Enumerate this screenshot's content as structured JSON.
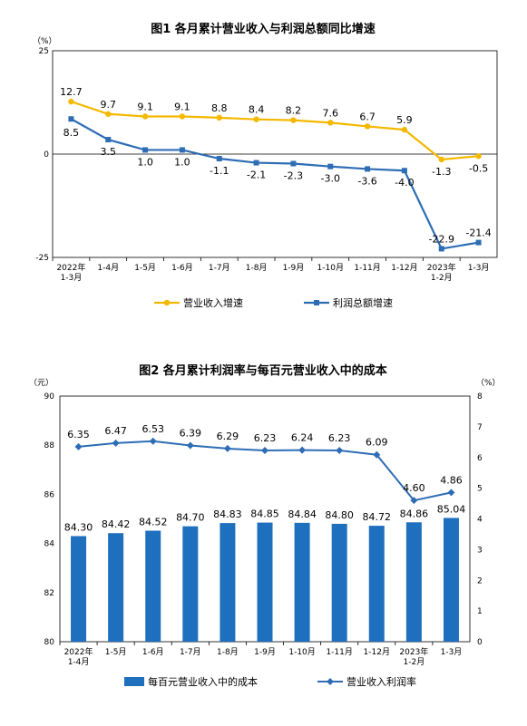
{
  "chart_data": [
    {
      "type": "line",
      "title": "图1  各月累计营业收入与利润总额同比增速",
      "y_unit": "（%）",
      "ylim": [
        -25,
        25
      ],
      "yticks": [
        "25",
        "0",
        "-25"
      ],
      "categories": [
        [
          "2022年",
          "1-3月"
        ],
        [
          "1-4月"
        ],
        [
          "1-5月"
        ],
        [
          "1-6月"
        ],
        [
          "1-7月"
        ],
        [
          "1-8月"
        ],
        [
          "1-9月"
        ],
        [
          "1-10月"
        ],
        [
          "1-11月"
        ],
        [
          "1-12月"
        ],
        [
          "2023年",
          "1-2月"
        ],
        [
          "1-3月"
        ]
      ],
      "series": [
        {
          "name": "营业收入增速",
          "color": "#F5B800",
          "marker": "circle",
          "values": [
            12.7,
            9.7,
            9.1,
            9.1,
            8.8,
            8.4,
            8.2,
            7.6,
            6.7,
            5.9,
            -1.3,
            -0.5
          ],
          "labels": [
            "12.7",
            "9.7",
            "9.1",
            "9.1",
            "8.8",
            "8.4",
            "8.2",
            "7.6",
            "6.7",
            "5.9",
            "-1.3",
            "-0.5"
          ]
        },
        {
          "name": "利润总额增速",
          "color": "#2E6DB4",
          "marker": "square",
          "values": [
            8.5,
            3.5,
            1.0,
            1.0,
            -1.1,
            -2.1,
            -2.3,
            -3.0,
            -3.6,
            -4.0,
            -22.9,
            -21.4
          ],
          "labels": [
            "8.5",
            "3.5",
            "1.0",
            "1.0",
            "-1.1",
            "-2.1",
            "-2.3",
            "-3.0",
            "-3.6",
            "-4.0",
            "-22.9",
            "-21.4"
          ]
        }
      ],
      "legend_position": "bottom",
      "grid": false
    },
    {
      "type": "bar+line",
      "title": "图2  各月累计利润率与每百元营业收入中的成本",
      "y_unit_left": "（元）",
      "y_unit_right": "（%）",
      "ylim_left": [
        80,
        90
      ],
      "yticks_left": [
        "90",
        "88",
        "86",
        "84",
        "82",
        "80"
      ],
      "ylim_right": [
        0,
        8
      ],
      "yticks_right": [
        "8",
        "7",
        "6",
        "5",
        "4",
        "3",
        "2",
        "1",
        "0"
      ],
      "categories": [
        [
          "2022年",
          "1-4月"
        ],
        [
          "1-5月"
        ],
        [
          "1-6月"
        ],
        [
          "1-7月"
        ],
        [
          "1-8月"
        ],
        [
          "1-9月"
        ],
        [
          "1-10月"
        ],
        [
          "1-11月"
        ],
        [
          "1-12月"
        ],
        [
          "2023年",
          "1-2月"
        ],
        [
          "1-3月"
        ]
      ],
      "bars": {
        "name": "每百元营业收入中的成本",
        "color": "#1F6FBF",
        "axis": "left",
        "values": [
          84.3,
          84.42,
          84.52,
          84.7,
          84.83,
          84.85,
          84.84,
          84.8,
          84.72,
          84.86,
          85.04
        ],
        "labels": [
          "84.30",
          "84.42",
          "84.52",
          "84.70",
          "84.83",
          "84.85",
          "84.84",
          "84.80",
          "84.72",
          "84.86",
          "85.04"
        ]
      },
      "line": {
        "name": "营业收入利润率",
        "color": "#2E6DB4",
        "axis": "right",
        "marker": "diamond",
        "values": [
          6.35,
          6.47,
          6.53,
          6.39,
          6.29,
          6.23,
          6.24,
          6.23,
          6.09,
          4.6,
          4.86
        ],
        "labels": [
          "6.35",
          "6.47",
          "6.53",
          "6.39",
          "6.29",
          "6.23",
          "6.24",
          "6.23",
          "6.09",
          "4.60",
          "4.86"
        ]
      },
      "legend_position": "bottom",
      "grid": false
    }
  ]
}
